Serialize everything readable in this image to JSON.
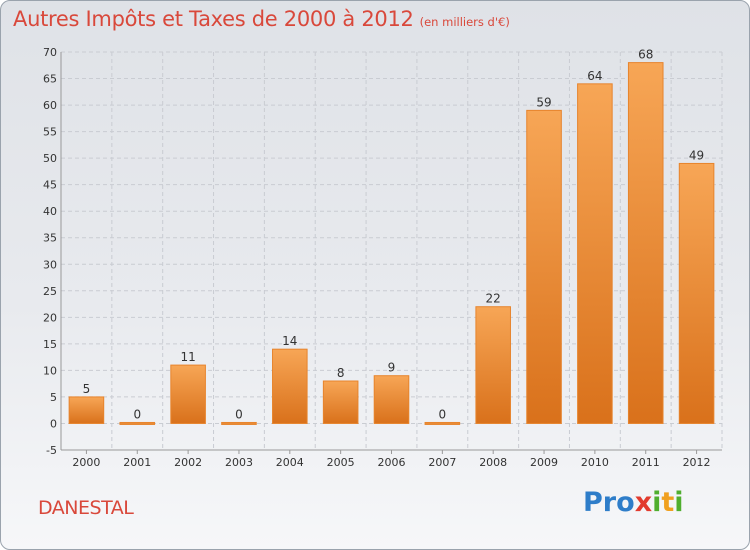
{
  "chart_data": {
    "type": "bar",
    "title": "Autres Impôts et Taxes de 2000 à 2012",
    "subtitle": "(en milliers d'€)",
    "categories": [
      "2000",
      "2001",
      "2002",
      "2003",
      "2004",
      "2005",
      "2006",
      "2007",
      "2008",
      "2009",
      "2010",
      "2011",
      "2012"
    ],
    "values": [
      5,
      0,
      11,
      0,
      14,
      8,
      9,
      0,
      22,
      59,
      64,
      68,
      49
    ],
    "ylim": [
      -5,
      70
    ],
    "yticks": [
      -5,
      0,
      5,
      10,
      15,
      20,
      25,
      30,
      35,
      40,
      45,
      50,
      55,
      60,
      65,
      70
    ],
    "grid": true,
    "xlabel": "",
    "ylabel": "",
    "bar_color": "#f0923a"
  },
  "commune": "DANESTAL",
  "logo": {
    "letters": [
      {
        "ch": "P",
        "color": "#2e7dc9"
      },
      {
        "ch": "r",
        "color": "#2e7dc9"
      },
      {
        "ch": "o",
        "color": "#2e7dc9"
      },
      {
        "ch": "x",
        "color": "#e23b2e"
      },
      {
        "ch": "i",
        "color": "#4fae2e"
      },
      {
        "ch": "t",
        "color": "#f0a020"
      },
      {
        "ch": "i",
        "color": "#4fae2e"
      }
    ]
  }
}
